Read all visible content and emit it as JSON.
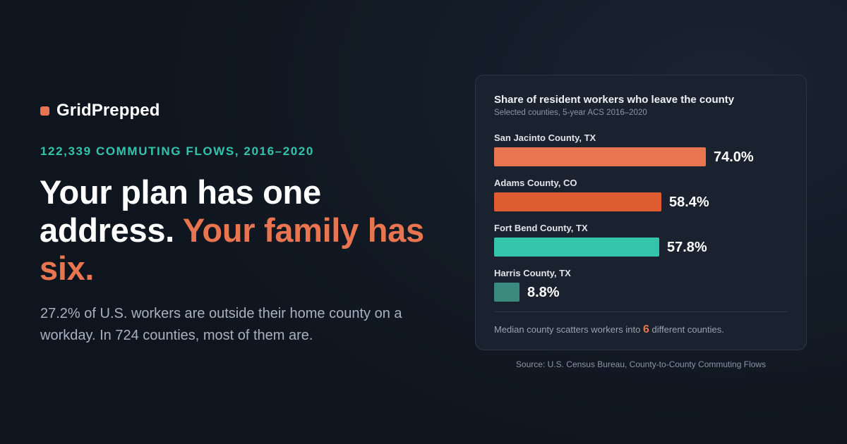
{
  "brand": {
    "name": "GridPrepped",
    "mark_color": "#e8754f"
  },
  "kicker": "122,339 COMMUTING FLOWS, 2016–2020",
  "headline": {
    "part1": "Your plan has one address. ",
    "part2": "Your family has six."
  },
  "subhead": "27.2% of U.S. workers are outside their home county on a workday. In 724 counties, most of them are.",
  "colors": {
    "accent_orange": "#e8754f",
    "accent_teal": "#34c3ab",
    "background": "#121a25",
    "card": "#1a2230"
  },
  "chart_data": {
    "type": "bar",
    "orientation": "horizontal",
    "title": "Share of resident workers who leave the county",
    "subtitle": "Selected counties, 5-year ACS 2016–2020",
    "categories": [
      "San Jacinto County, TX",
      "Adams County, CO",
      "Fort Bend County, TX",
      "Harris County, TX"
    ],
    "values": [
      74.0,
      58.4,
      57.8,
      8.8
    ],
    "value_labels": [
      "74.0%",
      "58.4%",
      "57.8%",
      "8.8%"
    ],
    "bar_colors": [
      "#e8754f",
      "#e05d33",
      "#34c3ab",
      "#3a8a7e"
    ],
    "xlim": [
      0,
      100
    ],
    "grid": false,
    "legend": "none"
  },
  "footnote": {
    "before": "Median county scatters workers into ",
    "number": "6",
    "after": " different counties."
  },
  "source": "Source: U.S. Census Bureau, County-to-County Commuting Flows"
}
